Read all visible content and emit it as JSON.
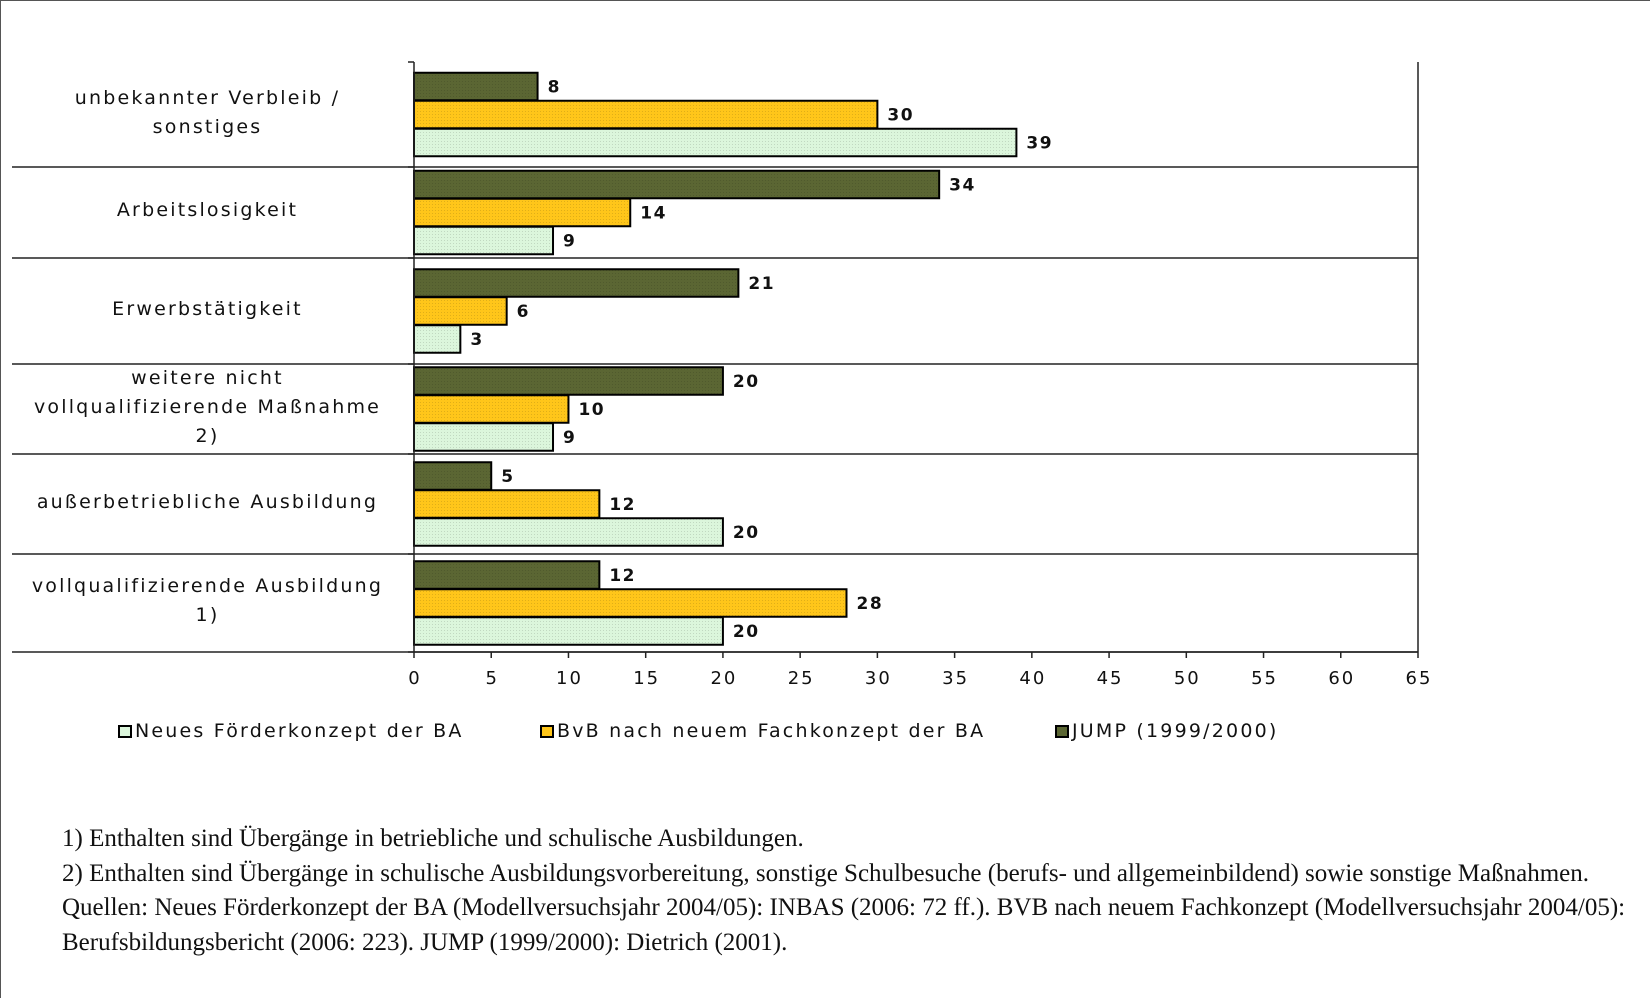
{
  "chart_data": {
    "type": "bar",
    "orientation": "horizontal",
    "categories": [
      "unbekannter Verbleib /\nsonstiges",
      "Arbeitslosigkeit",
      "Erwerbstätigkeit",
      "weitere nicht\nvollqualifizierende Maßnahme\n2)",
      "außerbetriebliche Ausbildung",
      "vollqualifizierende Ausbildung\n1)"
    ],
    "series": [
      {
        "name": "JUMP (1999/2000)",
        "color": "#5b6633",
        "values": [
          8,
          34,
          21,
          20,
          5,
          12
        ]
      },
      {
        "name": "BvB nach neuem Fachkonzept der BA",
        "color": "#ffc61a",
        "values": [
          30,
          14,
          6,
          10,
          12,
          28
        ]
      },
      {
        "name": "Neues Förderkonzept der BA",
        "color": "#dcf6dc",
        "values": [
          39,
          9,
          3,
          9,
          20,
          20
        ]
      }
    ],
    "xlim": [
      0,
      65
    ],
    "x_ticks": [
      "0",
      "5",
      "10",
      "15",
      "20",
      "25",
      "30",
      "35",
      "40",
      "45",
      "50",
      "55",
      "60",
      "65"
    ],
    "grid": false,
    "legend_position": "bottom"
  },
  "legend": [
    {
      "label": "Neues Förderkonzept der BA",
      "color": "#dcf6dc"
    },
    {
      "label": "BvB nach neuem Fachkonzept der BA",
      "color": "#ffc61a"
    },
    {
      "label": "JUMP (1999/2000)",
      "color": "#5b6633"
    }
  ],
  "notes": {
    "note1": "1) Enthalten sind Übergänge in betriebliche und schulische Ausbildungen.",
    "note2": "2) Enthalten sind Übergänge in schulische Ausbildungsvorbereitung, sonstige Schulbesuche (berufs- und allgemeinbildend) sowie sonstige Maßnahmen.",
    "sources": "Quellen: Neues Förderkonzept der BA (Modellversuchsjahr 2004/05): INBAS (2006: 72 ff.). BVB nach neuem Fachkonzept (Modellversuchsjahr 2004/05): Berufsbildungsbericht (2006: 223). JUMP (1999/2000): Dietrich (2001)."
  }
}
